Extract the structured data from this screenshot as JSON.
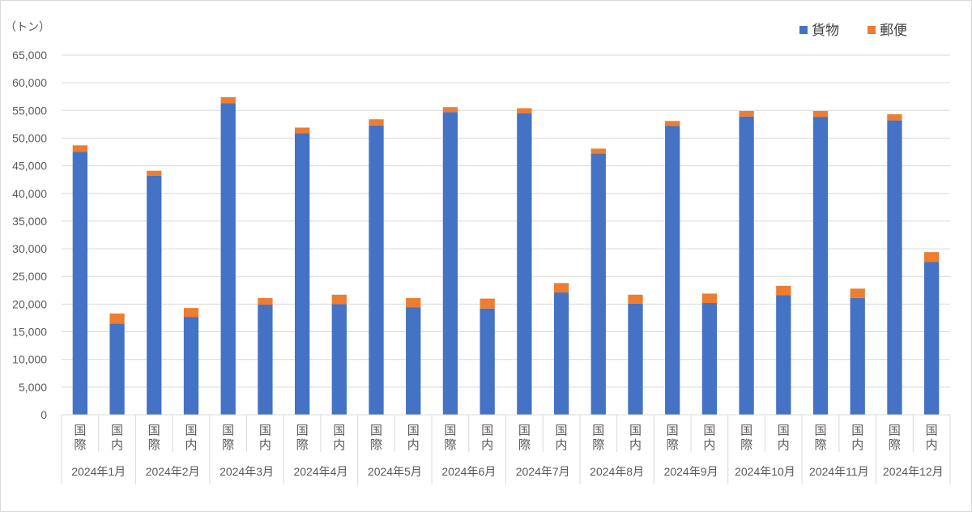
{
  "chart_data": {
    "type": "bar",
    "stacked": true,
    "unit_label": "（トン）",
    "ylim": [
      0,
      65000
    ],
    "y_ticks": [
      "0",
      "5,000",
      "10,000",
      "15,000",
      "20,000",
      "25,000",
      "30,000",
      "35,000",
      "40,000",
      "45,000",
      "50,000",
      "55,000",
      "60,000",
      "65,000"
    ],
    "y_tick_values": [
      0,
      5000,
      10000,
      15000,
      20000,
      25000,
      30000,
      35000,
      40000,
      45000,
      50000,
      55000,
      60000,
      65000
    ],
    "grid": true,
    "legend_position": "top-right",
    "groups": [
      "2024年1月",
      "2024年2月",
      "2024年3月",
      "2024年4月",
      "2024年5月",
      "2024年6月",
      "2024年7月",
      "2024年8月",
      "2024年9月",
      "2024年10月",
      "2024年11月",
      "2024年12月"
    ],
    "subcategories": [
      [
        "国",
        "際"
      ],
      [
        "国",
        "内"
      ]
    ],
    "series": [
      {
        "name": "貨物",
        "color": "#4472C4",
        "values": [
          47500,
          16500,
          43200,
          17700,
          56300,
          19900,
          50900,
          20000,
          52300,
          19400,
          54700,
          19200,
          54500,
          22100,
          47200,
          20100,
          52200,
          20200,
          53900,
          21600,
          53800,
          21100,
          53200,
          27600
        ]
      },
      {
        "name": "郵便",
        "color": "#ED7D31",
        "values": [
          1200,
          1800,
          900,
          1600,
          1100,
          1200,
          1000,
          1700,
          1100,
          1700,
          900,
          1800,
          900,
          1700,
          900,
          1600,
          900,
          1700,
          1000,
          1700,
          1100,
          1700,
          1100,
          1800
        ]
      }
    ]
  }
}
